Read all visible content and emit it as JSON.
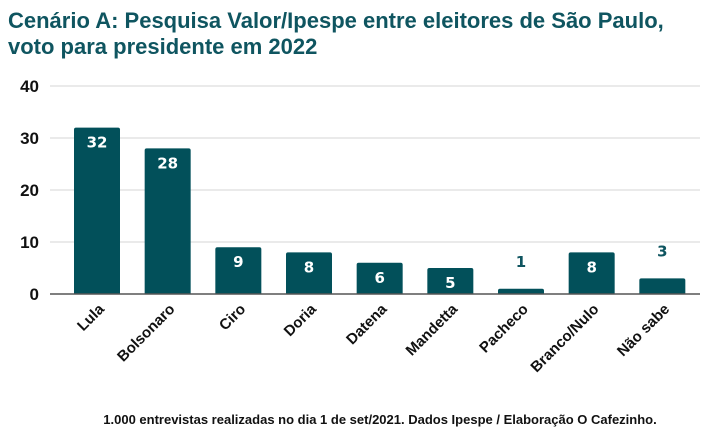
{
  "colors": {
    "bar": "#02505a",
    "title": "#0f5560",
    "label_inside": "#ffffff",
    "label_outside": "#0f5560",
    "grid": "#dddddd",
    "axis": "#555555"
  },
  "chart_data": {
    "type": "bar",
    "title": "Cenário A: Pesquisa Valor/Ipespe entre eleitores de São Paulo, voto para presidente em 2022",
    "xlabel": "",
    "ylabel": "",
    "categories": [
      "Lula",
      "Bolsonaro",
      "Ciro",
      "Doria",
      "Datena",
      "Mandetta",
      "Pacheco",
      "Branco/Nulo",
      "Não sabe"
    ],
    "values": [
      32,
      28,
      9,
      8,
      6,
      5,
      1,
      8,
      3
    ],
    "ylim": [
      0,
      40
    ],
    "yticks": [
      0,
      10,
      20,
      30,
      40
    ],
    "grid": true,
    "legend": "none"
  },
  "footer": "1.000 entrevistas realizadas no dia 1 de set/2021. Dados Ipespe / Elaboração O Cafezinho."
}
